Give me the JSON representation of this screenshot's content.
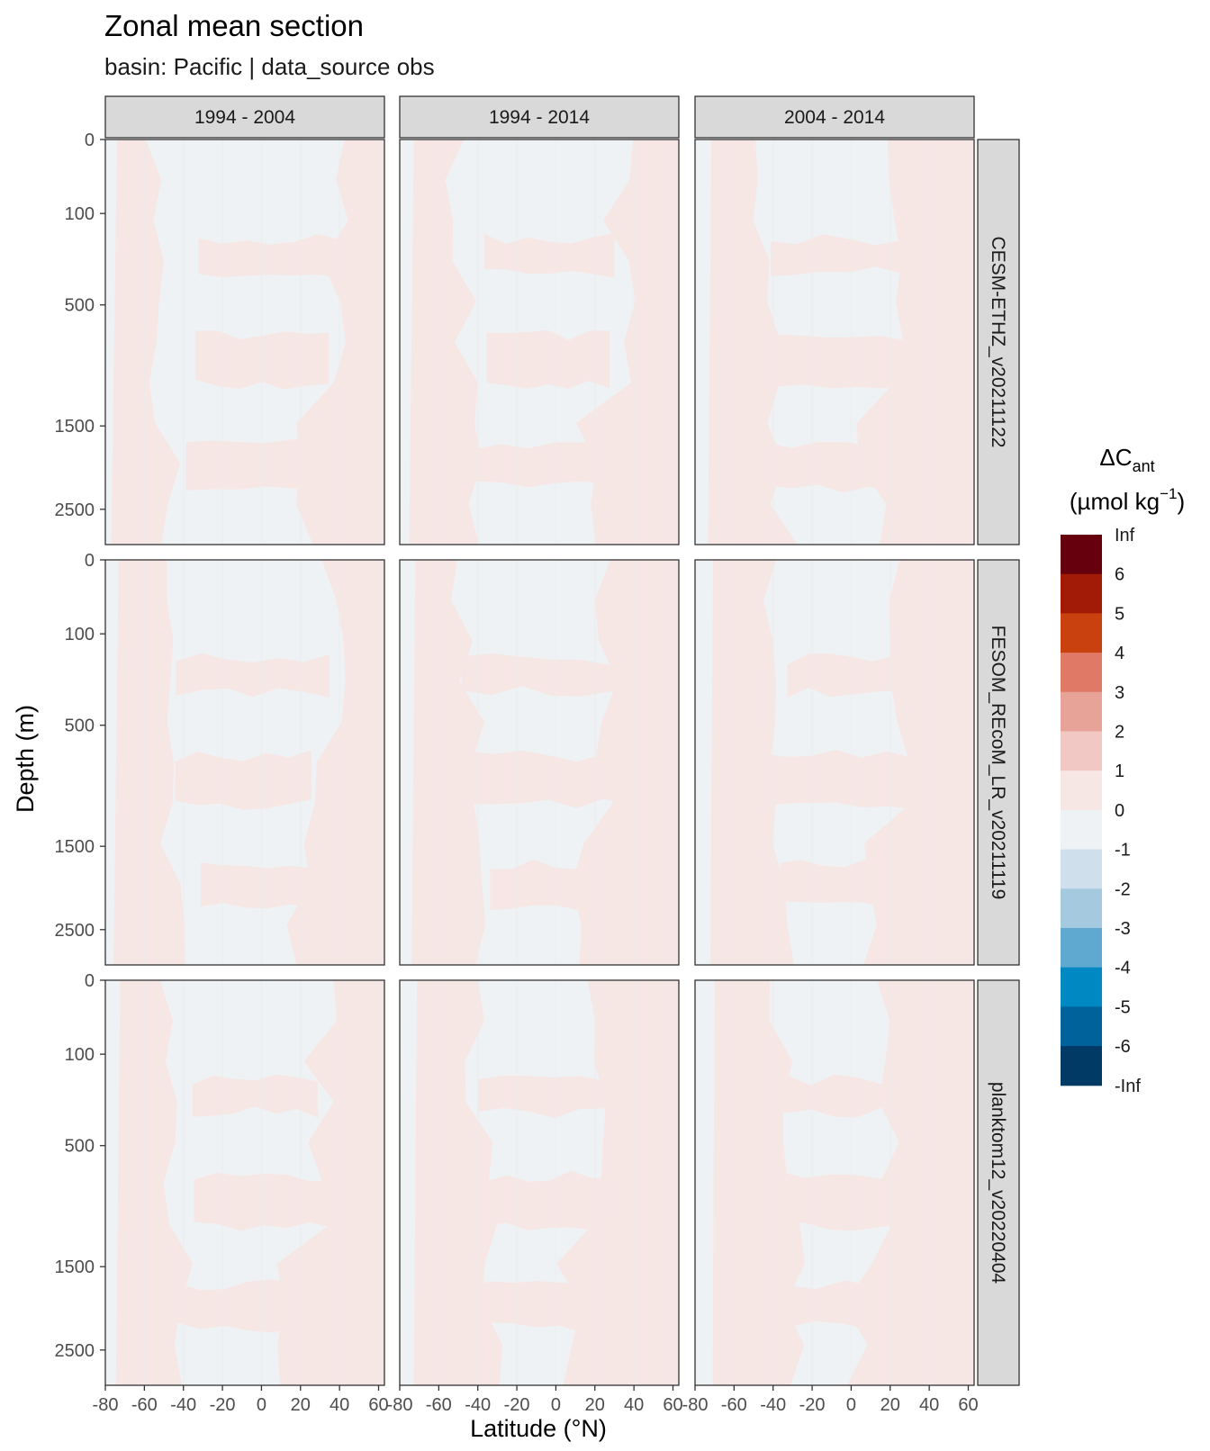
{
  "title": "Zonal mean section",
  "subtitle": "basin: Pacific | data_source obs",
  "chart_data": {
    "type": "heatmap",
    "title": "Zonal mean section",
    "subtitle": "basin: Pacific | data_source obs",
    "xlabel": "Latitude (°N)",
    "ylabel": "Depth (m)",
    "x_ticks": [
      -80,
      -60,
      -40,
      -20,
      0,
      20,
      40,
      60
    ],
    "x_tick_labels": [
      "-80",
      "-60",
      "-40",
      "-20",
      "0",
      "20",
      "40",
      "60"
    ],
    "xlim": [
      -80,
      63
    ],
    "y_ticks": [
      0,
      100,
      500,
      1500,
      2500
    ],
    "y_tick_labels": [
      "0",
      "100",
      "500",
      "1500",
      "2500"
    ],
    "y_reversed": true,
    "y_scale": "sqrt",
    "columns": [
      "1994 - 2004",
      "1994 - 2014",
      "2004 - 2014"
    ],
    "rows": [
      "CESM-ETHZ_v20211122",
      "FESOM_REcoM_LR_v20211119",
      "planktom12_v20220404"
    ],
    "legend": {
      "title_main": "ΔC",
      "title_sub": "ant",
      "title_units_pre": "(µmol kg",
      "title_units_sup": "−1",
      "title_units_post": ")",
      "position": "right",
      "labels": [
        "Inf",
        "6",
        "5",
        "4",
        "3",
        "2",
        "1",
        "0",
        "-1",
        "-2",
        "-3",
        "-4",
        "-5",
        "-6",
        "-Inf"
      ],
      "colors": [
        "#67000d",
        "#a11b06",
        "#c8410f",
        "#e07a67",
        "#e8a399",
        "#f1c8c3",
        "#f6e7e5",
        "#eef2f5",
        "#cfdfeb",
        "#a5c9df",
        "#5fa9d0",
        "#0088c2",
        "#00629a",
        "#023a66"
      ]
    },
    "background_colors": {
      "positive_0_1": "#f6e7e5",
      "negative_0_-1": "#eef2f5"
    }
  }
}
